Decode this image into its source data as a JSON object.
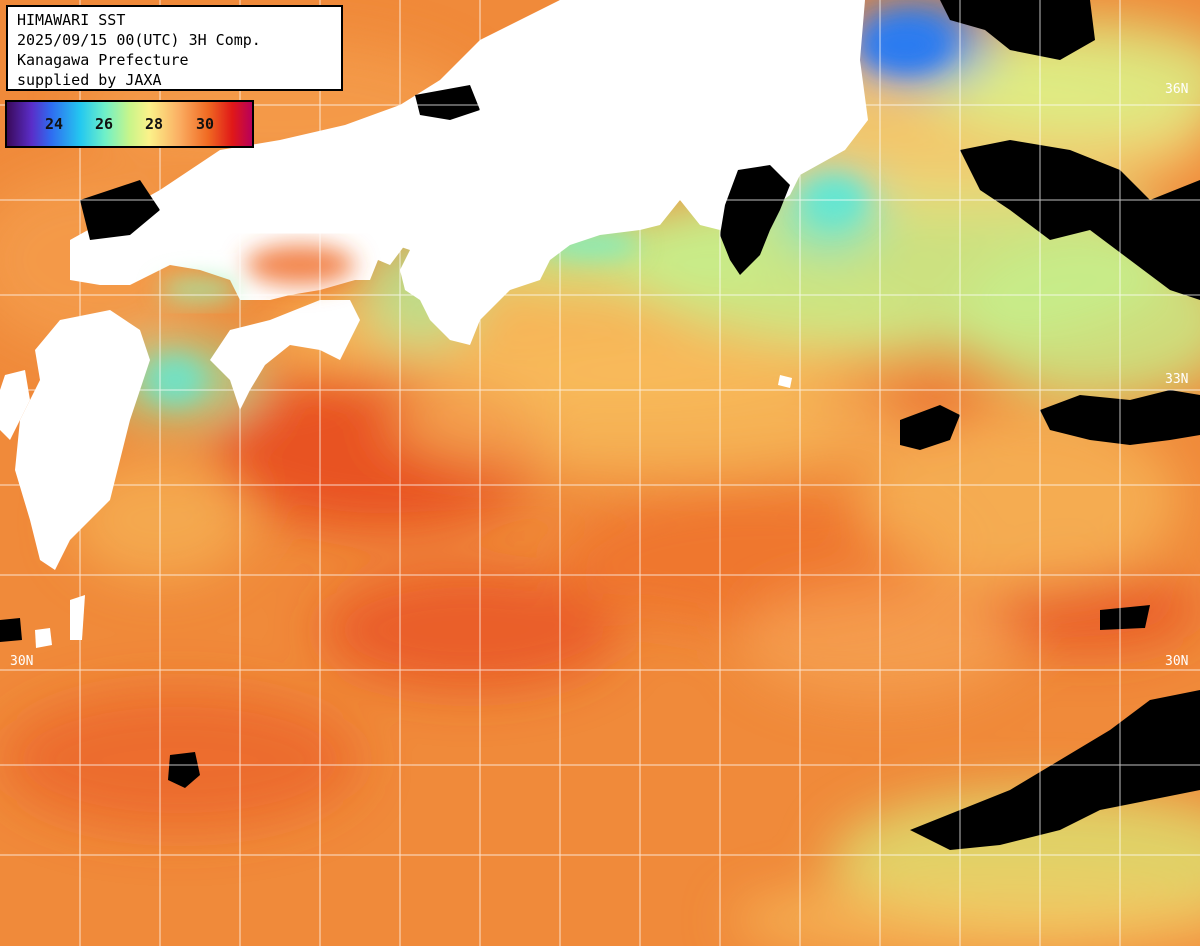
{
  "title": {
    "lines": [
      "HIMAWARI SST",
      "2025/09/15 00(UTC) 3H Comp.",
      "Kanagawa Prefecture",
      "supplied by JAXA"
    ]
  },
  "colorbar": {
    "ticks": [
      "24",
      "26",
      "28",
      "30"
    ]
  },
  "latitude_labels": {
    "right": [
      "36N",
      "33N",
      "30N"
    ],
    "left": [
      "30N"
    ]
  },
  "colors": {
    "land": "#ffffff",
    "cloud": "#000000",
    "warm_sea": "#f08a3a",
    "hot_sea": "#e6401e",
    "mild_sea": "#f9c864",
    "cool_sea": "#c6f08c",
    "cold_sea": "#64e6d2",
    "coldest_sea": "#2a7cf0",
    "grid": "#ffffff"
  }
}
